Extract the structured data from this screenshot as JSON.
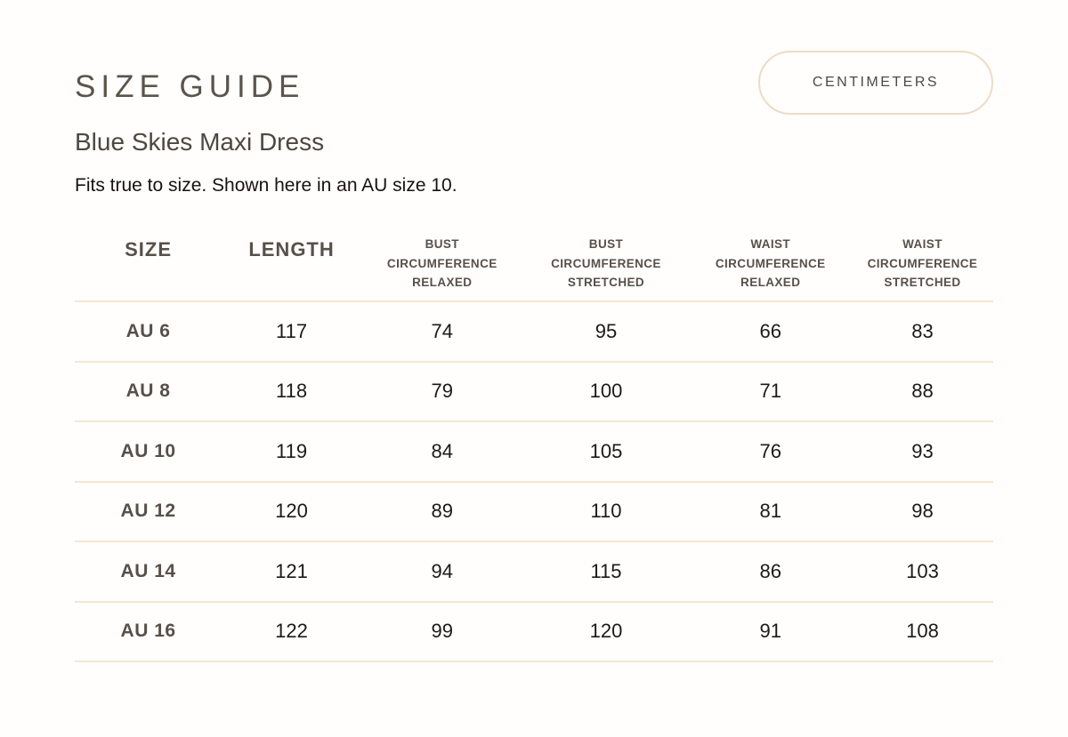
{
  "page": {
    "title": "SIZE GUIDE",
    "product_name": "Blue Skies Maxi Dress",
    "fit_note": "Fits true to size. Shown here in an AU size 10.",
    "unit_button_label": "CENTIMETERS"
  },
  "colors": {
    "background": "#FFFEFC",
    "heading": "#5B544C",
    "subheading": "#4D473F",
    "body_text": "#17130E",
    "table_label": "#57504A",
    "number_text": "#1D1A16",
    "divider": "#F5E6D4",
    "button_border": "#EEDBC5"
  },
  "table": {
    "headers": [
      "SIZE",
      "LENGTH",
      "BUST CIRCUMFERENCE RELAXED",
      "BUST CIRCUMFERENCE STRETCHED",
      "WAIST CIRCUMFERENCE RELAXED",
      "WAIST CIRCUMFERENCE STRETCHED"
    ],
    "rows": [
      {
        "size": "AU 6",
        "values": [
          "117",
          "74",
          "95",
          "66",
          "83"
        ]
      },
      {
        "size": "AU 8",
        "values": [
          "118",
          "79",
          "100",
          "71",
          "88"
        ]
      },
      {
        "size": "AU 10",
        "values": [
          "119",
          "84",
          "105",
          "76",
          "93"
        ]
      },
      {
        "size": "AU 12",
        "values": [
          "120",
          "89",
          "110",
          "81",
          "98"
        ]
      },
      {
        "size": "AU 14",
        "values": [
          "121",
          "94",
          "115",
          "86",
          "103"
        ]
      },
      {
        "size": "AU 16",
        "values": [
          "122",
          "99",
          "120",
          "91",
          "108"
        ]
      }
    ]
  }
}
